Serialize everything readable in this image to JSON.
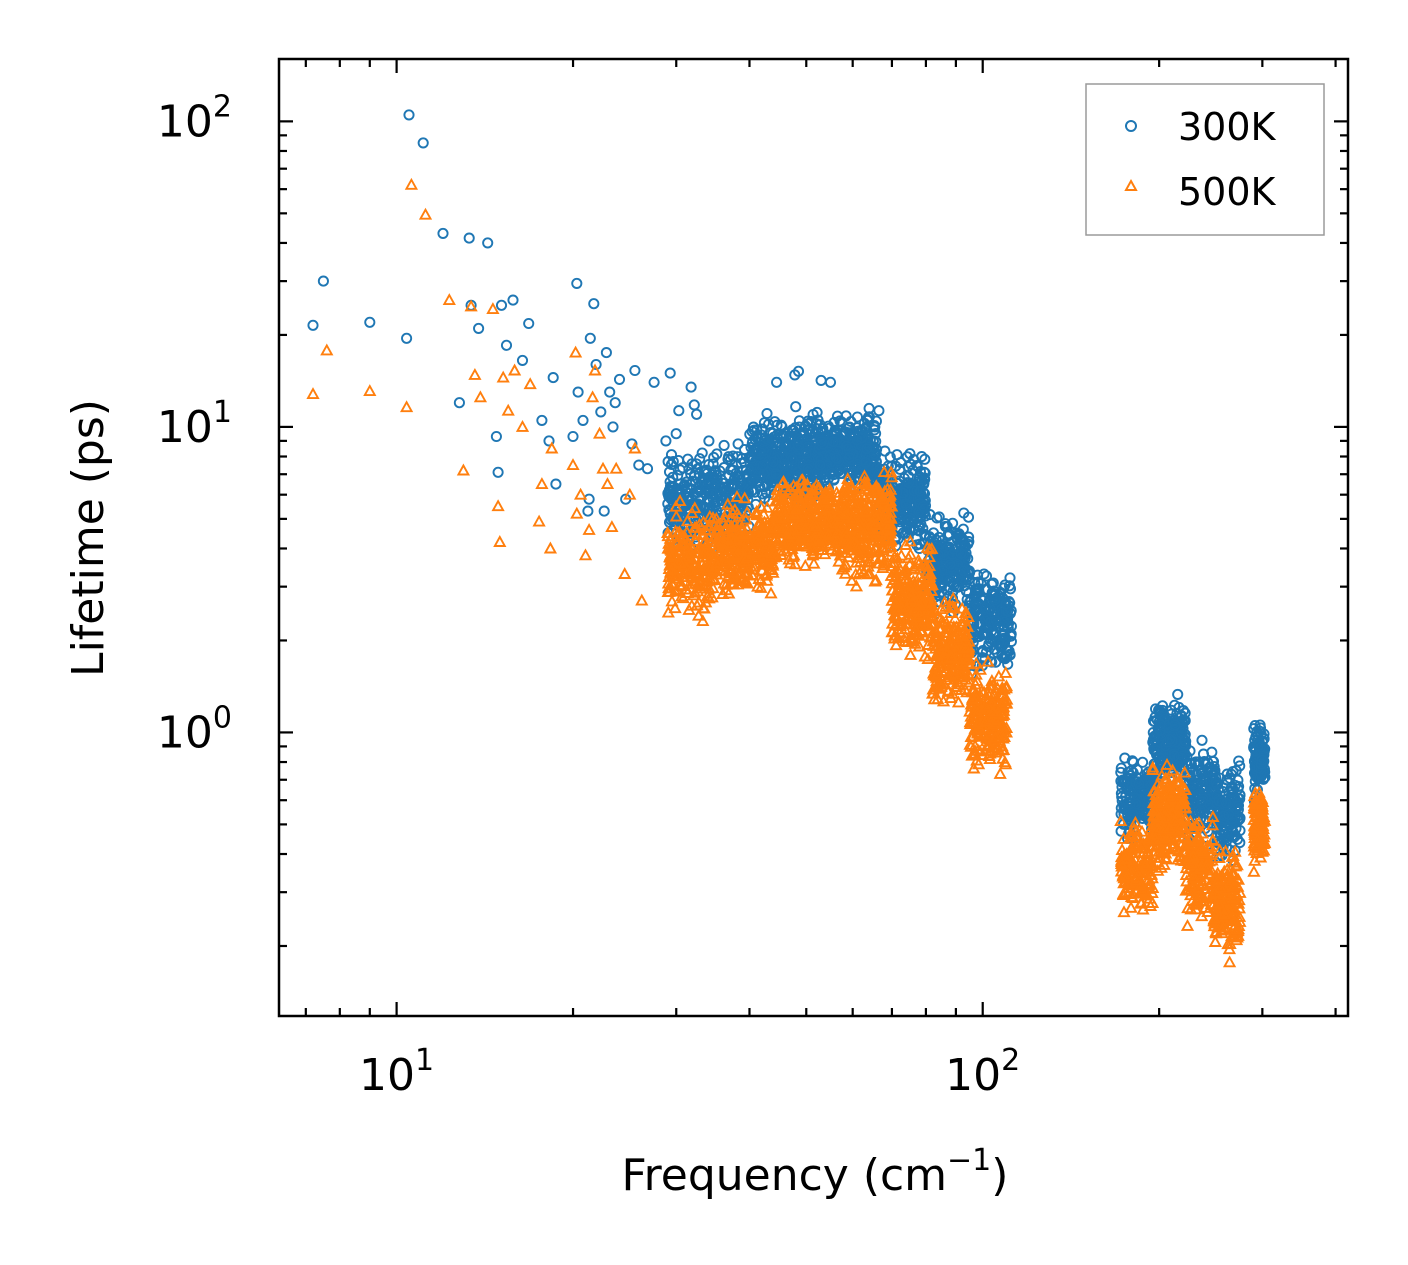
{
  "chart_data": {
    "type": "scatter",
    "xscale": "log",
    "yscale": "log",
    "xlim": [
      6.3,
      420
    ],
    "ylim": [
      0.118,
      160
    ],
    "xlabel": "Frequency (cm",
    "xlabel_sup": "−1",
    "xlabel_tail": ")",
    "ylabel": "Lifetime (ps)",
    "x_ticks": [
      {
        "value": 10,
        "base": "10",
        "exp": "1"
      },
      {
        "value": 100,
        "base": "10",
        "exp": "2"
      }
    ],
    "y_ticks": [
      {
        "value": 1,
        "base": "10",
        "exp": "0"
      },
      {
        "value": 10,
        "base": "10",
        "exp": "1"
      },
      {
        "value": 100,
        "base": "10",
        "exp": "2"
      }
    ],
    "legend_position": "top-right",
    "series": [
      {
        "name": "300K",
        "marker": "circle",
        "color": "#1f77b4",
        "points": [
          [
            7.2,
            21.5
          ],
          [
            7.5,
            30
          ],
          [
            9.0,
            22
          ],
          [
            10.4,
            19.5
          ],
          [
            10.5,
            105
          ],
          [
            11.1,
            85
          ],
          [
            12.0,
            43
          ],
          [
            12.8,
            12
          ],
          [
            13.3,
            41.5
          ],
          [
            13.4,
            25
          ],
          [
            13.8,
            21
          ],
          [
            14.3,
            40
          ],
          [
            14.8,
            9.3
          ],
          [
            14.9,
            7.1
          ],
          [
            15.1,
            25
          ],
          [
            15.4,
            18.5
          ],
          [
            15.8,
            26
          ],
          [
            16.4,
            16.5
          ],
          [
            16.8,
            21.8
          ],
          [
            17.7,
            10.5
          ],
          [
            18.2,
            9
          ],
          [
            18.5,
            14.5
          ],
          [
            18.7,
            6.5
          ],
          [
            20.0,
            9.3
          ],
          [
            20.3,
            29.5
          ],
          [
            20.4,
            13
          ],
          [
            20.8,
            10.5
          ],
          [
            21.2,
            5.3
          ],
          [
            21.3,
            5.8
          ],
          [
            21.4,
            19.5
          ],
          [
            21.7,
            25.3
          ],
          [
            21.9,
            16
          ],
          [
            22.3,
            11.2
          ],
          [
            22.6,
            5.3
          ],
          [
            22.8,
            17.5
          ],
          [
            23.1,
            13
          ],
          [
            23.4,
            10
          ],
          [
            23.6,
            12
          ],
          [
            24.0,
            14.3
          ],
          [
            24.6,
            5.8
          ],
          [
            25.2,
            8.8
          ],
          [
            25.5,
            15.3
          ],
          [
            25.9,
            7.5
          ],
          [
            26.8,
            7.3
          ],
          [
            27.5,
            14
          ],
          [
            28.8,
            9
          ],
          [
            29.3,
            15
          ],
          [
            30.0,
            9.5
          ],
          [
            30.3,
            11.3
          ],
          [
            31.8,
            13.5
          ],
          [
            32.2,
            11.8
          ],
          [
            32.5,
            11
          ],
          [
            36.2,
            8.7
          ],
          [
            44.5,
            14
          ],
          [
            47.8,
            14.8
          ],
          [
            48.5,
            15.2
          ],
          [
            53,
            14.2
          ],
          [
            55,
            14
          ],
          [
            64,
            11.5
          ],
          [
            66.5,
            11.3
          ],
          [
            100.5,
            3.3
          ],
          [
            101.5,
            3.25
          ]
        ],
        "bands": [
          {
            "x": [
              29,
              40
            ],
            "y": [
              3.6,
              9.5
            ],
            "n": 320
          },
          {
            "x": [
              40,
              52
            ],
            "y": [
              5,
              12
            ],
            "n": 360
          },
          {
            "x": [
              52,
              66
            ],
            "y": [
              5.8,
              11.8
            ],
            "n": 340
          },
          {
            "x": [
              66,
              80
            ],
            "y": [
              3.6,
              9
            ],
            "n": 280
          },
          {
            "x": [
              80,
              95
            ],
            "y": [
              2.3,
              5.5
            ],
            "n": 230
          },
          {
            "x": [
              95,
              112
            ],
            "y": [
              1.4,
              3.7
            ],
            "n": 210
          },
          {
            "x": [
              172,
              195
            ],
            "y": [
              0.42,
              0.9
            ],
            "n": 150
          },
          {
            "x": [
              195,
              222
            ],
            "y": [
              0.62,
              1.38
            ],
            "n": 230
          },
          {
            "x": [
              222,
              250
            ],
            "y": [
              0.4,
              1.0
            ],
            "n": 150
          },
          {
            "x": [
              250,
              275
            ],
            "y": [
              0.35,
              0.85
            ],
            "n": 150
          },
          {
            "x": [
              290,
              303
            ],
            "y": [
              0.55,
              1.18
            ],
            "n": 110
          }
        ]
      },
      {
        "name": "500K",
        "marker": "triangle",
        "color": "#ff7f0e",
        "points": [
          [
            7.2,
            12.8
          ],
          [
            7.6,
            17.8
          ],
          [
            9.0,
            13.1
          ],
          [
            10.4,
            11.6
          ],
          [
            10.6,
            62
          ],
          [
            11.2,
            49.5
          ],
          [
            12.3,
            26
          ],
          [
            13.0,
            7.2
          ],
          [
            13.4,
            24.8
          ],
          [
            13.6,
            14.8
          ],
          [
            13.9,
            12.5
          ],
          [
            14.6,
            24.3
          ],
          [
            14.9,
            5.5
          ],
          [
            15.0,
            4.2
          ],
          [
            15.2,
            14.5
          ],
          [
            15.5,
            11.3
          ],
          [
            15.9,
            15.3
          ],
          [
            16.4,
            10
          ],
          [
            16.9,
            13.8
          ],
          [
            17.5,
            4.9
          ],
          [
            17.7,
            6.5
          ],
          [
            18.3,
            4.0
          ],
          [
            18.4,
            8.5
          ],
          [
            20.0,
            7.5
          ],
          [
            20.2,
            17.5
          ],
          [
            20.3,
            5.2
          ],
          [
            20.6,
            6
          ],
          [
            21.0,
            3.8
          ],
          [
            21.3,
            4.6
          ],
          [
            21.6,
            12.5
          ],
          [
            21.8,
            15.3
          ],
          [
            22.2,
            9.5
          ],
          [
            22.5,
            7.3
          ],
          [
            22.9,
            6.5
          ],
          [
            23.3,
            4.7
          ],
          [
            23.7,
            7.3
          ],
          [
            24.5,
            3.3
          ],
          [
            25.0,
            6
          ],
          [
            25.5,
            8.5
          ],
          [
            26.2,
            2.7
          ]
        ],
        "bands": [
          {
            "x": [
              29,
              35
            ],
            "y": [
              2.1,
              6.0
            ],
            "n": 220
          },
          {
            "x": [
              35,
              44
            ],
            "y": [
              2.6,
              6.2
            ],
            "n": 280
          },
          {
            "x": [
              44,
              58
            ],
            "y": [
              3.2,
              7.5
            ],
            "n": 360
          },
          {
            "x": [
              58,
              70
            ],
            "y": [
              2.8,
              7.8
            ],
            "n": 300
          },
          {
            "x": [
              70,
              82
            ],
            "y": [
              1.6,
              4.6
            ],
            "n": 240
          },
          {
            "x": [
              82,
              95
            ],
            "y": [
              1.1,
              3.0
            ],
            "n": 220
          },
          {
            "x": [
              95,
              110
            ],
            "y": [
              0.68,
              1.8
            ],
            "n": 210
          },
          {
            "x": [
              172,
              195
            ],
            "y": [
              0.24,
              0.55
            ],
            "n": 150
          },
          {
            "x": [
              195,
              222
            ],
            "y": [
              0.32,
              0.85
            ],
            "n": 230
          },
          {
            "x": [
              222,
              248
            ],
            "y": [
              0.22,
              0.58
            ],
            "n": 150
          },
          {
            "x": [
              248,
              275
            ],
            "y": [
              0.17,
              0.46
            ],
            "n": 170
          },
          {
            "x": [
              290,
              303
            ],
            "y": [
              0.34,
              0.72
            ],
            "n": 110
          }
        ]
      }
    ]
  }
}
